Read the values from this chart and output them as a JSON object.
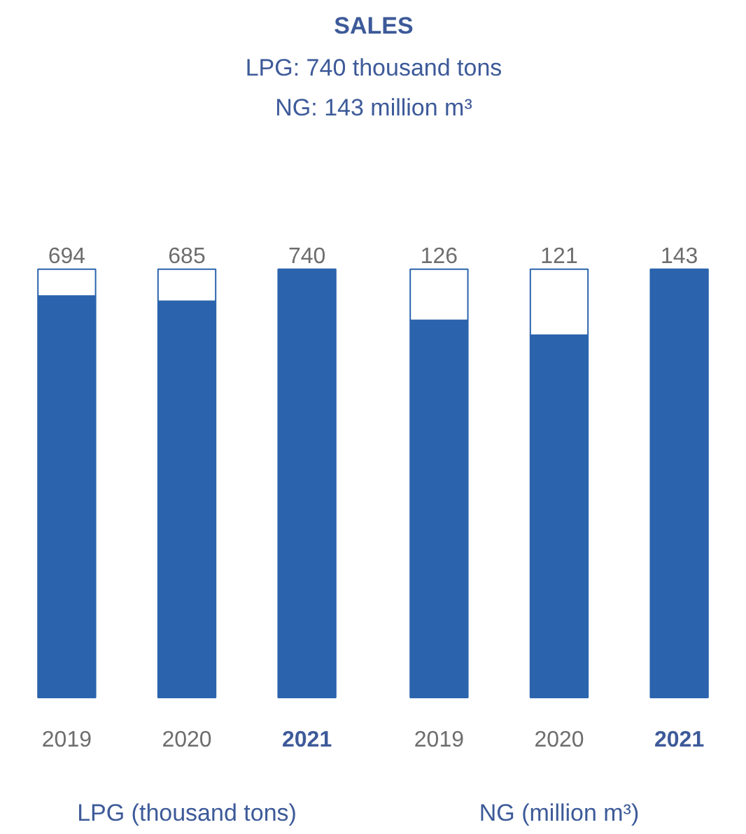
{
  "chart_data": [
    {
      "type": "bar",
      "title": "SALES",
      "subtitle": "LPG: 740 thousand tons\nNG: 143 million m³",
      "xlabel": "LPG (thousand tons)",
      "categories": [
        "2019",
        "2020",
        "2021"
      ],
      "stacked": true,
      "series": [
        {
          "color": "#2b64ad",
          "values": [
            694,
            685,
            740
          ],
          "value_labels": [
            "694",
            "685",
            "740"
          ]
        },
        {
          "color": "#ffffff",
          "values": [
            46,
            55,
            null
          ]
        }
      ]
    },
    {
      "type": "bar",
      "xlabel": "NG (million m³)",
      "categories": [
        "2019",
        "2020",
        "2021"
      ],
      "stacked": true,
      "series": [
        {
          "color": "#2b64ad",
          "values": [
            126,
            121,
            143
          ],
          "value_labels": [
            "126",
            "121",
            "143"
          ]
        },
        {
          "color": "#ffffff",
          "values": [
            17,
            22,
            null
          ]
        }
      ]
    }
  ]
}
